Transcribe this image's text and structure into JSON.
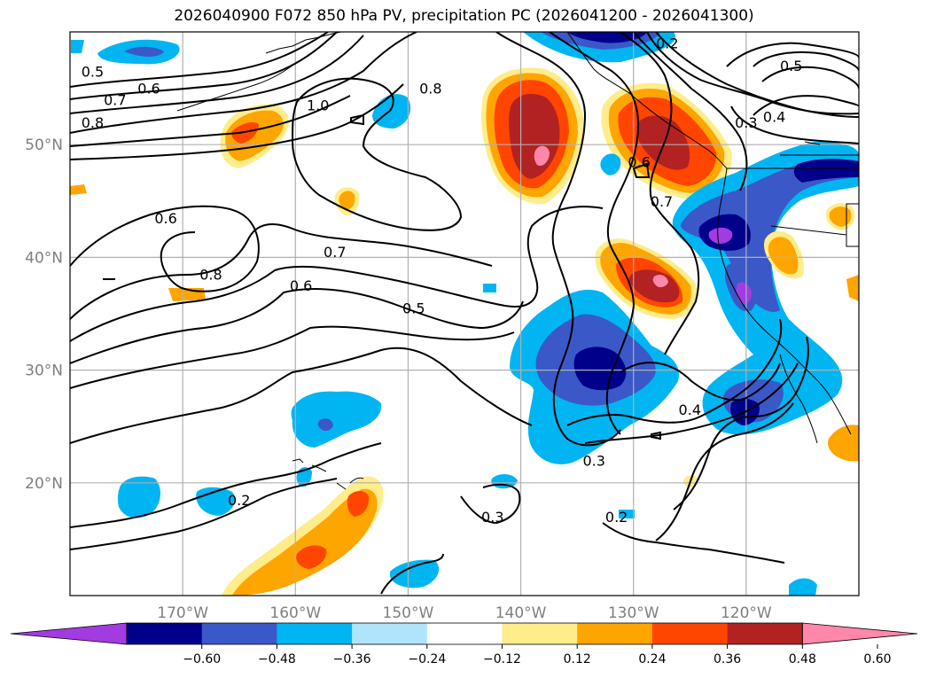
{
  "title": "2026040900 F072 850 hPa PV, precipitation PC (2026041200 - 2026041300)",
  "map": {
    "lon_range": [
      -180,
      -110
    ],
    "lat_range": [
      10,
      60
    ],
    "lat_ticks": [
      {
        "value": 50,
        "label": "50°N"
      },
      {
        "value": 40,
        "label": "40°N"
      },
      {
        "value": 30,
        "label": "30°N"
      },
      {
        "value": 20,
        "label": "20°N"
      }
    ],
    "lon_ticks": [
      {
        "value": -170,
        "label": "170°W"
      },
      {
        "value": -160,
        "label": "160°W"
      },
      {
        "value": -150,
        "label": "150°W"
      },
      {
        "value": -140,
        "label": "140°W"
      },
      {
        "value": -130,
        "label": "130°W"
      },
      {
        "value": -120,
        "label": "120°W"
      }
    ],
    "gridlines": true,
    "contour_labels": [
      {
        "text": "0.5",
        "lon": -178,
        "lat": 56.5
      },
      {
        "text": "0.6",
        "lon": -173,
        "lat": 55
      },
      {
        "text": "0.7",
        "lon": -176,
        "lat": 54
      },
      {
        "text": "0.8",
        "lon": -178,
        "lat": 52
      },
      {
        "text": "1.0",
        "lon": -158,
        "lat": 53.5
      },
      {
        "text": "0.8",
        "lon": -148,
        "lat": 55
      },
      {
        "text": "0.6",
        "lon": -171.5,
        "lat": 43.5
      },
      {
        "text": "0.8",
        "lon": -167.5,
        "lat": 38.5
      },
      {
        "text": "0.7",
        "lon": -156.5,
        "lat": 40.5
      },
      {
        "text": "0.6",
        "lon": -159.5,
        "lat": 37.5
      },
      {
        "text": "0.5",
        "lon": -149.5,
        "lat": 35.5
      },
      {
        "text": "0.2",
        "lon": -127,
        "lat": 59
      },
      {
        "text": "0.5",
        "lon": -116,
        "lat": 57
      },
      {
        "text": "0.4",
        "lon": -117.5,
        "lat": 52.5
      },
      {
        "text": "0.3",
        "lon": -120,
        "lat": 52
      },
      {
        "text": "0.6",
        "lon": -129.5,
        "lat": 48.5
      },
      {
        "text": "0.7",
        "lon": -127.5,
        "lat": 45
      },
      {
        "text": "0.4",
        "lon": -125,
        "lat": 26.5
      },
      {
        "text": "0.3",
        "lon": -133.5,
        "lat": 22
      },
      {
        "text": "0.3",
        "lon": -142.5,
        "lat": 17
      },
      {
        "text": "0.2",
        "lon": -131.5,
        "lat": 17
      },
      {
        "text": "0.2",
        "lon": -165,
        "lat": 18.5
      }
    ]
  },
  "colorbar": {
    "colors": [
      "#a23be0",
      "#00008b",
      "#3a58c8",
      "#00b5f2",
      "#b0e4fa",
      "#ffffff",
      "#ffec8b",
      "#ffa500",
      "#ff4500",
      "#b22222",
      "#ff88aa"
    ],
    "tick_labels": [
      "−0.60",
      "−0.48",
      "−0.36",
      "−0.24",
      "−0.12",
      "0.12",
      "0.24",
      "0.36",
      "0.48",
      "0.60"
    ]
  }
}
